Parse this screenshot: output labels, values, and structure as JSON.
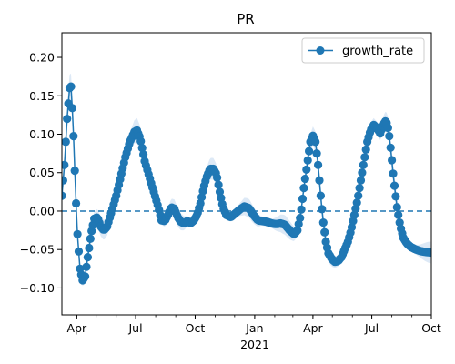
{
  "chart_data": {
    "type": "line",
    "title": "PR",
    "xlabel": "",
    "ylabel": "",
    "x_year_label": "2021",
    "xlim": [
      "2020-03-09",
      "2021-10-01"
    ],
    "ylim": [
      -0.135,
      0.232
    ],
    "x_ticks": [
      {
        "date": "2020-04-01",
        "label": "Apr"
      },
      {
        "date": "2020-07-01",
        "label": "Jul"
      },
      {
        "date": "2020-10-01",
        "label": "Oct"
      },
      {
        "date": "2021-01-01",
        "label": "Jan"
      },
      {
        "date": "2021-04-01",
        "label": "Apr"
      },
      {
        "date": "2021-07-01",
        "label": "Jul"
      },
      {
        "date": "2021-10-01",
        "label": "Oct"
      }
    ],
    "y_ticks": [
      {
        "value": 0.2,
        "label": "0.20"
      },
      {
        "value": 0.15,
        "label": "0.15"
      },
      {
        "value": 0.1,
        "label": "0.10"
      },
      {
        "value": 0.05,
        "label": "0.05"
      },
      {
        "value": 0.0,
        "label": "0.00"
      },
      {
        "value": -0.05,
        "label": "−0.05"
      },
      {
        "value": -0.1,
        "label": "−0.10"
      }
    ],
    "reference_line": {
      "y": 0,
      "style": "dashed"
    },
    "legend": {
      "placement": "top-right"
    },
    "series": [
      {
        "name": "growth_rate",
        "color": "#1f77b4",
        "band_color": "#dde9f6",
        "points": [
          {
            "x": "2020-03-09",
            "y": 0.02
          },
          {
            "x": "2020-03-13",
            "y": 0.06
          },
          {
            "x": "2020-03-17",
            "y": 0.12
          },
          {
            "x": "2020-03-21",
            "y": 0.16
          },
          {
            "x": "2020-03-23",
            "y": 0.162
          },
          {
            "x": "2020-03-26",
            "y": 0.12
          },
          {
            "x": "2020-03-30",
            "y": 0.03
          },
          {
            "x": "2020-04-02",
            "y": -0.03
          },
          {
            "x": "2020-04-06",
            "y": -0.075
          },
          {
            "x": "2020-04-10",
            "y": -0.09
          },
          {
            "x": "2020-04-14",
            "y": -0.085
          },
          {
            "x": "2020-04-18",
            "y": -0.06
          },
          {
            "x": "2020-04-23",
            "y": -0.03
          },
          {
            "x": "2020-04-28",
            "y": -0.01
          },
          {
            "x": "2020-05-03",
            "y": -0.008
          },
          {
            "x": "2020-05-08",
            "y": -0.02
          },
          {
            "x": "2020-05-13",
            "y": -0.025
          },
          {
            "x": "2020-05-18",
            "y": -0.02
          },
          {
            "x": "2020-05-25",
            "y": 0.0
          },
          {
            "x": "2020-06-01",
            "y": 0.02
          },
          {
            "x": "2020-06-08",
            "y": 0.045
          },
          {
            "x": "2020-06-15",
            "y": 0.07
          },
          {
            "x": "2020-06-22",
            "y": 0.09
          },
          {
            "x": "2020-06-29",
            "y": 0.103
          },
          {
            "x": "2020-07-03",
            "y": 0.105
          },
          {
            "x": "2020-07-08",
            "y": 0.095
          },
          {
            "x": "2020-07-15",
            "y": 0.065
          },
          {
            "x": "2020-07-22",
            "y": 0.045
          },
          {
            "x": "2020-07-29",
            "y": 0.025
          },
          {
            "x": "2020-08-05",
            "y": 0.005
          },
          {
            "x": "2020-08-10",
            "y": -0.012
          },
          {
            "x": "2020-08-15",
            "y": -0.013
          },
          {
            "x": "2020-08-20",
            "y": -0.005
          },
          {
            "x": "2020-08-25",
            "y": 0.005
          },
          {
            "x": "2020-08-30",
            "y": 0.003
          },
          {
            "x": "2020-09-04",
            "y": -0.008
          },
          {
            "x": "2020-09-09",
            "y": -0.014
          },
          {
            "x": "2020-09-14",
            "y": -0.016
          },
          {
            "x": "2020-09-19",
            "y": -0.013
          },
          {
            "x": "2020-09-24",
            "y": -0.016
          },
          {
            "x": "2020-09-29",
            "y": -0.012
          },
          {
            "x": "2020-10-04",
            "y": -0.005
          },
          {
            "x": "2020-10-09",
            "y": 0.01
          },
          {
            "x": "2020-10-14",
            "y": 0.03
          },
          {
            "x": "2020-10-19",
            "y": 0.045
          },
          {
            "x": "2020-10-24",
            "y": 0.055
          },
          {
            "x": "2020-10-29",
            "y": 0.055
          },
          {
            "x": "2020-11-03",
            "y": 0.048
          },
          {
            "x": "2020-11-08",
            "y": 0.025
          },
          {
            "x": "2020-11-13",
            "y": 0.005
          },
          {
            "x": "2020-11-18",
            "y": -0.005
          },
          {
            "x": "2020-11-25",
            "y": -0.008
          },
          {
            "x": "2020-12-02",
            "y": -0.003
          },
          {
            "x": "2020-12-09",
            "y": 0.002
          },
          {
            "x": "2020-12-16",
            "y": 0.006
          },
          {
            "x": "2020-12-23",
            "y": 0.004
          },
          {
            "x": "2020-12-30",
            "y": -0.005
          },
          {
            "x": "2021-01-06",
            "y": -0.012
          },
          {
            "x": "2021-01-13",
            "y": -0.013
          },
          {
            "x": "2021-01-20",
            "y": -0.014
          },
          {
            "x": "2021-01-27",
            "y": -0.016
          },
          {
            "x": "2021-02-03",
            "y": -0.017
          },
          {
            "x": "2021-02-10",
            "y": -0.016
          },
          {
            "x": "2021-02-17",
            "y": -0.018
          },
          {
            "x": "2021-02-24",
            "y": -0.025
          },
          {
            "x": "2021-03-03",
            "y": -0.03
          },
          {
            "x": "2021-03-08",
            "y": -0.025
          },
          {
            "x": "2021-03-13",
            "y": -0.005
          },
          {
            "x": "2021-03-18",
            "y": 0.03
          },
          {
            "x": "2021-03-23",
            "y": 0.06
          },
          {
            "x": "2021-03-28",
            "y": 0.09
          },
          {
            "x": "2021-04-01",
            "y": 0.098
          },
          {
            "x": "2021-04-05",
            "y": 0.09
          },
          {
            "x": "2021-04-09",
            "y": 0.06
          },
          {
            "x": "2021-04-13",
            "y": 0.02
          },
          {
            "x": "2021-04-17",
            "y": -0.015
          },
          {
            "x": "2021-04-21",
            "y": -0.04
          },
          {
            "x": "2021-04-25",
            "y": -0.055
          },
          {
            "x": "2021-04-30",
            "y": -0.062
          },
          {
            "x": "2021-05-05",
            "y": -0.066
          },
          {
            "x": "2021-05-10",
            "y": -0.065
          },
          {
            "x": "2021-05-15",
            "y": -0.06
          },
          {
            "x": "2021-05-20",
            "y": -0.05
          },
          {
            "x": "2021-05-25",
            "y": -0.04
          },
          {
            "x": "2021-05-30",
            "y": -0.025
          },
          {
            "x": "2021-06-04",
            "y": -0.005
          },
          {
            "x": "2021-06-09",
            "y": 0.015
          },
          {
            "x": "2021-06-14",
            "y": 0.04
          },
          {
            "x": "2021-06-19",
            "y": 0.065
          },
          {
            "x": "2021-06-24",
            "y": 0.09
          },
          {
            "x": "2021-06-29",
            "y": 0.105
          },
          {
            "x": "2021-07-04",
            "y": 0.112
          },
          {
            "x": "2021-07-09",
            "y": 0.108
          },
          {
            "x": "2021-07-14",
            "y": 0.101
          },
          {
            "x": "2021-07-19",
            "y": 0.113
          },
          {
            "x": "2021-07-23",
            "y": 0.118
          },
          {
            "x": "2021-07-27",
            "y": 0.105
          },
          {
            "x": "2021-07-31",
            "y": 0.075
          },
          {
            "x": "2021-08-04",
            "y": 0.04
          },
          {
            "x": "2021-08-09",
            "y": 0.005
          },
          {
            "x": "2021-08-14",
            "y": -0.02
          },
          {
            "x": "2021-08-19",
            "y": -0.035
          },
          {
            "x": "2021-08-24",
            "y": -0.042
          },
          {
            "x": "2021-08-31",
            "y": -0.047
          },
          {
            "x": "2021-09-07",
            "y": -0.05
          },
          {
            "x": "2021-09-14",
            "y": -0.052
          },
          {
            "x": "2021-09-21",
            "y": -0.053
          },
          {
            "x": "2021-10-01",
            "y": -0.054
          }
        ]
      }
    ]
  }
}
